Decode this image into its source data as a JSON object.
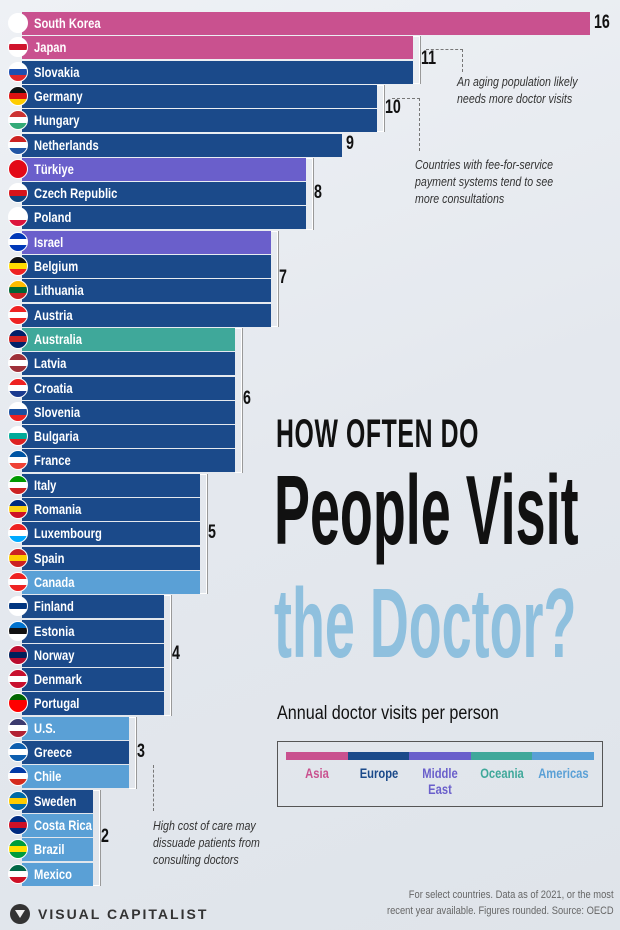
{
  "colors": {
    "Asia": "#c9518f",
    "Europe": "#1b4a8a",
    "Middle East": "#6a5fcb",
    "Oceania": "#3fa89a",
    "Americas": "#5aa0d6"
  },
  "chart_data": {
    "type": "bar",
    "orientation": "horizontal",
    "title": "HOW OFTEN DO People Visit the Doctor?",
    "title_parts": [
      "HOW OFTEN DO",
      "People Visit",
      "the Doctor?"
    ],
    "subtitle": "Annual doctor visits per person",
    "legend": [
      "Asia",
      "Europe",
      "Middle East",
      "Oceania",
      "Americas"
    ],
    "legend_display": [
      [
        "Asia"
      ],
      [
        "Europe"
      ],
      [
        "Middle",
        "East"
      ],
      [
        "Oceania"
      ],
      [
        "Americas"
      ]
    ],
    "xlim": [
      0,
      16
    ],
    "rows": [
      {
        "country": "South Korea",
        "value": 16,
        "region": "Asia",
        "flag": [
          "#fff",
          "#fff",
          "#fff"
        ]
      },
      {
        "country": "Japan",
        "value": 11,
        "region": "Asia",
        "flag": [
          "#fff",
          "#d0142c",
          "#fff"
        ]
      },
      {
        "country": "Slovakia",
        "value": 11,
        "region": "Europe",
        "flag": [
          "#fff",
          "#1d4fb0",
          "#e2262a"
        ]
      },
      {
        "country": "Germany",
        "value": 10,
        "region": "Europe",
        "flag": [
          "#111",
          "#d11",
          "#fc0"
        ]
      },
      {
        "country": "Hungary",
        "value": 10,
        "region": "Europe",
        "flag": [
          "#c33",
          "#fff",
          "#3a7"
        ]
      },
      {
        "country": "Netherlands",
        "value": 9,
        "region": "Europe",
        "flag": [
          "#c22",
          "#fff",
          "#2255a4"
        ]
      },
      {
        "country": "Türkiye",
        "value": 8,
        "region": "Middle East",
        "flag": [
          "#e30a17",
          "#e30a17",
          "#e30a17"
        ]
      },
      {
        "country": "Czech Republic",
        "value": 8,
        "region": "Europe",
        "flag": [
          "#fff",
          "#d7141a",
          "#11457e"
        ]
      },
      {
        "country": "Poland",
        "value": 8,
        "region": "Europe",
        "flag": [
          "#fff",
          "#fff",
          "#dc143c"
        ]
      },
      {
        "country": "Israel",
        "value": 7,
        "region": "Middle East",
        "flag": [
          "#0038b8",
          "#fff",
          "#0038b8"
        ]
      },
      {
        "country": "Belgium",
        "value": 7,
        "region": "Europe",
        "flag": [
          "#111",
          "#fd0",
          "#e22"
        ]
      },
      {
        "country": "Lithuania",
        "value": 7,
        "region": "Europe",
        "flag": [
          "#fb0",
          "#063",
          "#c22"
        ]
      },
      {
        "country": "Austria",
        "value": 7,
        "region": "Europe",
        "flag": [
          "#e22",
          "#fff",
          "#e22"
        ]
      },
      {
        "country": "Australia",
        "value": 6,
        "region": "Oceania",
        "flag": [
          "#012169",
          "#c22",
          "#012169"
        ]
      },
      {
        "country": "Latvia",
        "value": 6,
        "region": "Europe",
        "flag": [
          "#9e3039",
          "#fff",
          "#9e3039"
        ]
      },
      {
        "country": "Croatia",
        "value": 6,
        "region": "Europe",
        "flag": [
          "#e22",
          "#fff",
          "#1a3a8f"
        ]
      },
      {
        "country": "Slovenia",
        "value": 6,
        "region": "Europe",
        "flag": [
          "#fff",
          "#1a4fa0",
          "#e22"
        ]
      },
      {
        "country": "Bulgaria",
        "value": 6,
        "region": "Europe",
        "flag": [
          "#fff",
          "#0a9",
          "#d22"
        ]
      },
      {
        "country": "France",
        "value": 6,
        "region": "Europe",
        "flag": [
          "#0055a4",
          "#fff",
          "#ef4135"
        ]
      },
      {
        "country": "Italy",
        "value": 5,
        "region": "Europe",
        "flag": [
          "#090",
          "#fff",
          "#c22"
        ]
      },
      {
        "country": "Romania",
        "value": 5,
        "region": "Europe",
        "flag": [
          "#002b7f",
          "#fcd116",
          "#ce1126"
        ]
      },
      {
        "country": "Luxembourg",
        "value": 5,
        "region": "Europe",
        "flag": [
          "#e22",
          "#fff",
          "#0af"
        ]
      },
      {
        "country": "Spain",
        "value": 5,
        "region": "Europe",
        "flag": [
          "#c22",
          "#fc0",
          "#c22"
        ]
      },
      {
        "country": "Canada",
        "value": 5,
        "region": "Americas",
        "flag": [
          "#e22",
          "#fff",
          "#e22"
        ]
      },
      {
        "country": "Finland",
        "value": 4,
        "region": "Europe",
        "flag": [
          "#fff",
          "#003580",
          "#fff"
        ]
      },
      {
        "country": "Estonia",
        "value": 4,
        "region": "Europe",
        "flag": [
          "#0072ce",
          "#111",
          "#fff"
        ]
      },
      {
        "country": "Norway",
        "value": 4,
        "region": "Europe",
        "flag": [
          "#ba0c2f",
          "#00205b",
          "#ba0c2f"
        ]
      },
      {
        "country": "Denmark",
        "value": 4,
        "region": "Europe",
        "flag": [
          "#c8102e",
          "#fff",
          "#c8102e"
        ]
      },
      {
        "country": "Portugal",
        "value": 4,
        "region": "Europe",
        "flag": [
          "#060",
          "#f00",
          "#f00"
        ]
      },
      {
        "country": "U.S.",
        "value": 3,
        "region": "Americas",
        "flag": [
          "#3c3b6e",
          "#fff",
          "#b22234"
        ]
      },
      {
        "country": "Greece",
        "value": 3,
        "region": "Europe",
        "flag": [
          "#0d5eaf",
          "#fff",
          "#0d5eaf"
        ]
      },
      {
        "country": "Chile",
        "value": 3,
        "region": "Americas",
        "flag": [
          "#0039a6",
          "#fff",
          "#d52b1e"
        ]
      },
      {
        "country": "Sweden",
        "value": 2,
        "region": "Europe",
        "flag": [
          "#006aa7",
          "#fecc00",
          "#006aa7"
        ]
      },
      {
        "country": "Costa Rica",
        "value": 2,
        "region": "Americas",
        "flag": [
          "#002b7f",
          "#ce1126",
          "#002b7f"
        ]
      },
      {
        "country": "Brazil",
        "value": 2,
        "region": "Americas",
        "flag": [
          "#009c3b",
          "#ffdf00",
          "#009c3b"
        ]
      },
      {
        "country": "Mexico",
        "value": 2,
        "region": "Americas",
        "flag": [
          "#006847",
          "#fff",
          "#ce1126"
        ]
      }
    ],
    "annotations": [
      "An aging population likely needs more doctor visits",
      "Countries with fee-for-service payment systems tend to see more consultations",
      "High cost of care may dissuade patients from consulting doctors"
    ]
  },
  "notes": {
    "aging": [
      "An aging population likely",
      "needs more doctor visits"
    ],
    "fee": [
      "Countries with fee-for-service",
      "payment systems tend to see",
      "more consultations"
    ],
    "cost": [
      "High cost of care may",
      "dissuade patients from",
      "consulting doctors"
    ]
  },
  "footer": {
    "source": [
      "For select countries.  Data as of 2021, or the most",
      "recent year available. Figures rounded. Source: OECD"
    ],
    "brand": "VISUAL CAPITALIST"
  }
}
